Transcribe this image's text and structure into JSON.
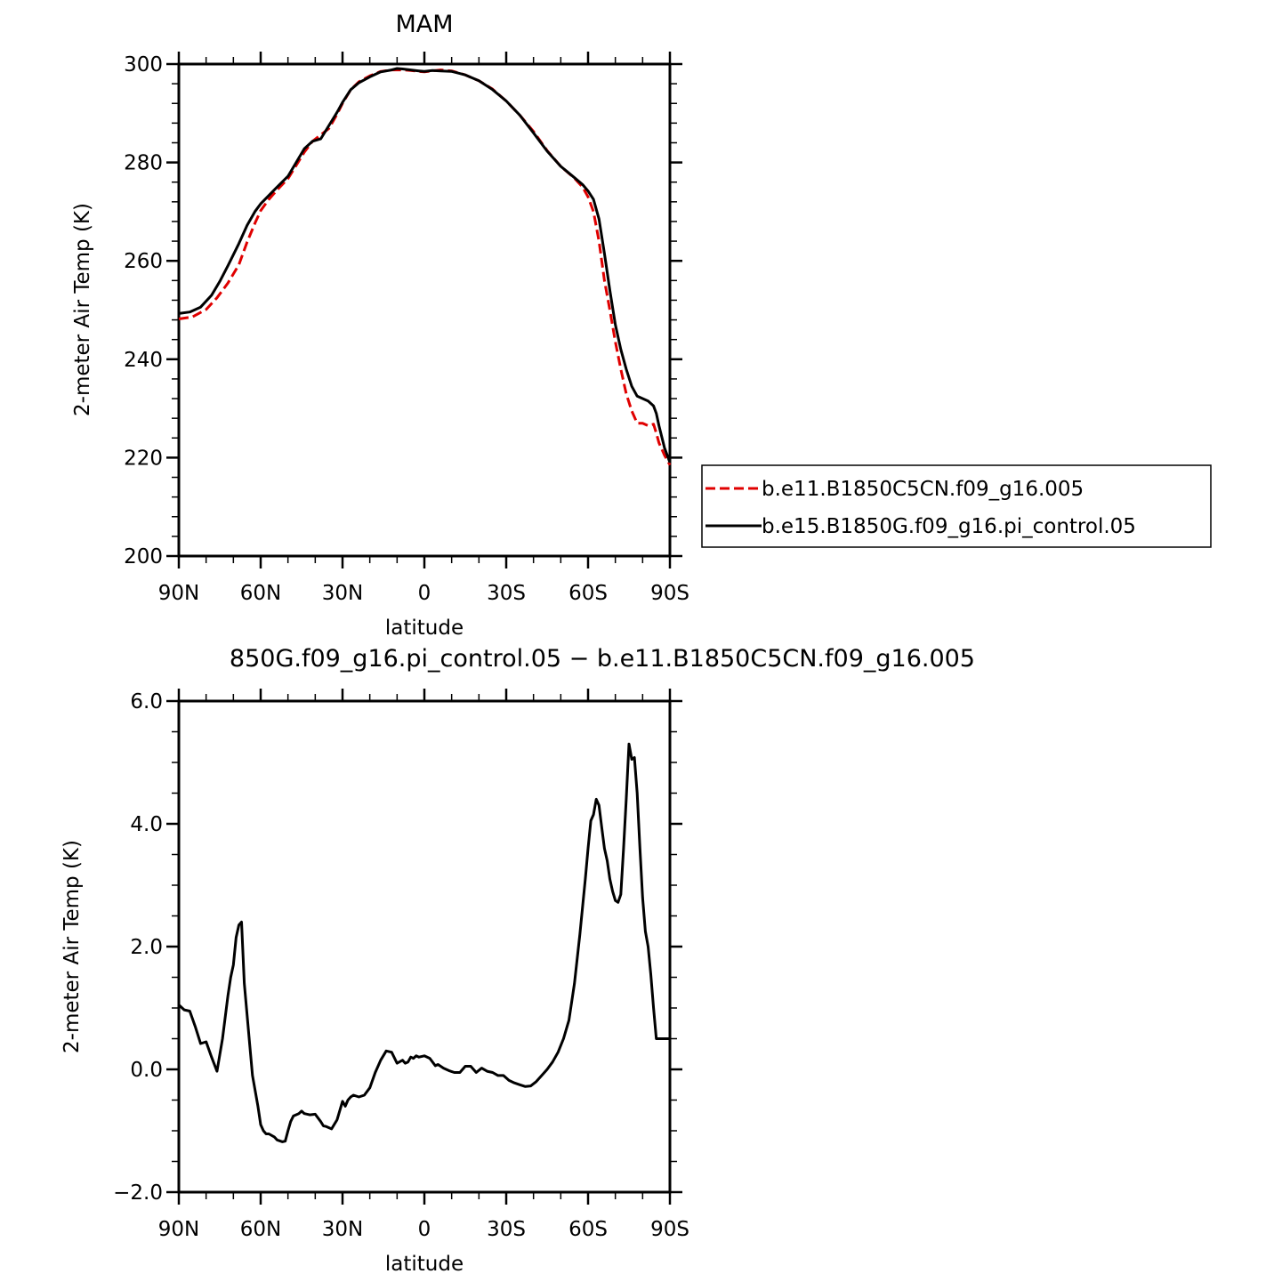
{
  "chart_data": [
    {
      "type": "line",
      "title": "MAM",
      "xlabel": "latitude",
      "ylabel": "2-meter Air Temp (K)",
      "xlim": [
        90,
        -90
      ],
      "ylim": [
        200,
        300
      ],
      "x_ticks": [
        90,
        60,
        30,
        0,
        -30,
        -60,
        -90
      ],
      "x_tick_labels": [
        "90N",
        "60N",
        "30N",
        "0",
        "30S",
        "60S",
        "90S"
      ],
      "y_ticks": [
        200,
        220,
        240,
        260,
        280,
        300
      ],
      "y_tick_labels": [
        "200",
        "220",
        "240",
        "260",
        "280",
        "300"
      ],
      "legend_position": "right",
      "series": [
        {
          "name": "b.e11.B1850C5CN.f09_g16.005",
          "color": "#e00000",
          "dash": "dashed",
          "x": [
            90,
            85,
            80,
            76,
            72,
            68,
            65,
            62,
            60,
            57,
            54,
            50,
            47,
            44,
            41,
            38,
            35,
            32,
            30,
            27,
            24,
            20,
            16,
            12,
            8,
            5,
            2,
            0,
            -3,
            -6,
            -10,
            -15,
            -20,
            -25,
            -30,
            -35,
            -40,
            -45,
            -50,
            -55,
            -58,
            -60,
            -62,
            -64,
            -66,
            -68,
            -70,
            -72,
            -74,
            -76,
            -78,
            -80,
            -82,
            -84,
            -85,
            -86,
            -88,
            -90
          ],
          "y": [
            248.2,
            248.6,
            250.1,
            252.5,
            255.5,
            259.2,
            263.8,
            267.8,
            270.2,
            272.5,
            274.4,
            276.7,
            279.4,
            282.1,
            284.3,
            285.6,
            286.9,
            289.8,
            292.0,
            294.8,
            296.4,
            297.6,
            298.5,
            298.8,
            298.8,
            298.7,
            298.5,
            298.4,
            298.6,
            298.8,
            298.6,
            297.8,
            296.6,
            294.9,
            292.5,
            289.6,
            286.3,
            282.4,
            279.2,
            276.8,
            275.0,
            273.0,
            270.0,
            264.0,
            256.0,
            250.0,
            243.5,
            238.0,
            233.0,
            229.5,
            227.0,
            227.0,
            226.5,
            226.8,
            225.0,
            223.0,
            220.5,
            218.5
          ]
        },
        {
          "name": "b.e15.B1850G.f09_g16.pi_control.05",
          "color": "#000000",
          "dash": "solid",
          "x": [
            90,
            86,
            82,
            78,
            75,
            72,
            68,
            65,
            62,
            60,
            57,
            54,
            50,
            47,
            44,
            41,
            38,
            35,
            32,
            30,
            27,
            24,
            20,
            16,
            12,
            10,
            8,
            5,
            2,
            0,
            -3,
            -6,
            -10,
            -15,
            -20,
            -25,
            -30,
            -35,
            -40,
            -45,
            -50,
            -55,
            -58,
            -60,
            -62,
            -64,
            -66,
            -68,
            -70,
            -72,
            -74,
            -76,
            -78,
            -80,
            -82,
            -84,
            -85,
            -86,
            -88,
            -90
          ],
          "y": [
            249.3,
            249.6,
            250.6,
            253.0,
            255.8,
            259.0,
            263.5,
            267.2,
            270.1,
            271.6,
            273.3,
            275.0,
            277.2,
            280.0,
            282.8,
            284.3,
            284.8,
            287.5,
            290.2,
            292.2,
            294.8,
            296.2,
            297.4,
            298.4,
            298.8,
            299.1,
            299.0,
            298.8,
            298.6,
            298.5,
            298.7,
            298.6,
            298.5,
            297.8,
            296.6,
            294.8,
            292.5,
            289.6,
            286.0,
            282.3,
            279.2,
            276.9,
            275.5,
            274.2,
            272.5,
            268.5,
            261.5,
            254.0,
            247.0,
            242.0,
            238.0,
            234.5,
            232.5,
            232.0,
            231.5,
            230.5,
            229.0,
            226.5,
            222.0,
            219.0
          ]
        }
      ]
    },
    {
      "type": "line",
      "title": "850G.f09_g16.pi_control.05 − b.e11.B1850C5CN.f09_g16.005",
      "xlabel": "latitude",
      "ylabel": "2-meter Air Temp (K)",
      "xlim": [
        90,
        -90
      ],
      "ylim": [
        -2.0,
        6.0
      ],
      "x_ticks": [
        90,
        60,
        30,
        0,
        -30,
        -60,
        -90
      ],
      "x_tick_labels": [
        "90N",
        "60N",
        "30N",
        "0",
        "30S",
        "60S",
        "90S"
      ],
      "y_ticks": [
        -2,
        0,
        2,
        4,
        6
      ],
      "y_tick_labels": [
        "−2.0",
        "0.0",
        "2.0",
        "4.0",
        "6.0"
      ],
      "series": [
        {
          "color": "#000000",
          "dash": "solid",
          "x": [
            90,
            88,
            86,
            84,
            82,
            80,
            78,
            76,
            74,
            72,
            71,
            70,
            69,
            68,
            67,
            66,
            64,
            63,
            61,
            60,
            59,
            58,
            57,
            55,
            54,
            52,
            51,
            50,
            49,
            48,
            46,
            45,
            44,
            42,
            40,
            38,
            37,
            36,
            34,
            32,
            30,
            29,
            28,
            27,
            26,
            24,
            22,
            20,
            18,
            17,
            16,
            14,
            12,
            10,
            8,
            7,
            6,
            5,
            4,
            3,
            2,
            0,
            -2,
            -4,
            -5,
            -7,
            -9,
            -11,
            -13,
            -15,
            -17,
            -19,
            -21,
            -23,
            -25,
            -27,
            -29,
            -31,
            -33,
            -35,
            -37,
            -39,
            -41,
            -43,
            -45,
            -47,
            -49,
            -51,
            -53,
            -55,
            -57,
            -59,
            -60,
            -61,
            -62,
            -63,
            -64,
            -65,
            -66,
            -67,
            -68,
            -69,
            -70,
            -71,
            -72,
            -73,
            -74,
            -75,
            -76,
            -77,
            -78,
            -79,
            -80,
            -81,
            -82,
            -83,
            -84,
            -85,
            -86,
            -87,
            -88,
            -89,
            -90
          ],
          "y": [
            1.05,
            0.97,
            0.95,
            0.7,
            0.42,
            0.45,
            0.2,
            -0.03,
            0.5,
            1.2,
            1.5,
            1.7,
            2.15,
            2.35,
            2.4,
            1.4,
            0.4,
            -0.1,
            -0.6,
            -0.9,
            -1.0,
            -1.05,
            -1.05,
            -1.1,
            -1.15,
            -1.18,
            -1.17,
            -1.0,
            -0.85,
            -0.76,
            -0.72,
            -0.68,
            -0.72,
            -0.74,
            -0.73,
            -0.85,
            -0.92,
            -0.93,
            -0.97,
            -0.82,
            -0.52,
            -0.6,
            -0.5,
            -0.45,
            -0.42,
            -0.45,
            -0.42,
            -0.3,
            -0.05,
            0.05,
            0.15,
            0.3,
            0.28,
            0.1,
            0.15,
            0.1,
            0.12,
            0.2,
            0.18,
            0.22,
            0.2,
            0.22,
            0.18,
            0.06,
            0.08,
            0.02,
            -0.02,
            -0.05,
            -0.05,
            0.05,
            0.05,
            -0.05,
            0.02,
            -0.03,
            -0.05,
            -0.1,
            -0.1,
            -0.18,
            -0.22,
            -0.25,
            -0.28,
            -0.27,
            -0.2,
            -0.1,
            0.0,
            0.12,
            0.28,
            0.5,
            0.8,
            1.4,
            2.2,
            3.1,
            3.6,
            4.05,
            4.15,
            4.4,
            4.3,
            3.95,
            3.6,
            3.4,
            3.1,
            2.9,
            2.75,
            2.72,
            2.85,
            3.6,
            4.4,
            5.3,
            5.05,
            5.08,
            4.5,
            3.6,
            2.8,
            2.25,
            2.0,
            1.55,
            1.0,
            0.5,
            0.5,
            0.5,
            0.5,
            0.5,
            0.5
          ]
        }
      ]
    }
  ],
  "legend": {
    "entries": [
      "b.e11.B1850C5CN.f09_g16.005",
      "b.e15.B1850G.f09_g16.pi_control.05"
    ]
  }
}
